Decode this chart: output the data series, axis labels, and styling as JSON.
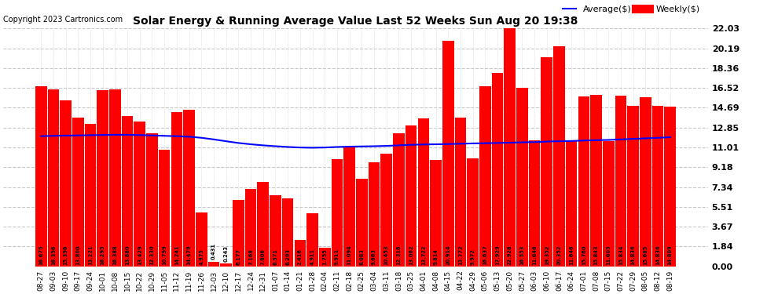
{
  "title": "Solar Energy & Running Average Value Last 52 Weeks Sun Aug 20 19:38",
  "copyright": "Copyright 2023 Cartronics.com",
  "legend_avg": "Average($)",
  "legend_weekly": "Weekly($)",
  "bar_color": "#ff0000",
  "avg_line_color": "#0000ff",
  "background_color": "#ffffff",
  "grid_color": "#c8c8c8",
  "ylabel_right_values": [
    0.0,
    1.84,
    3.67,
    5.51,
    7.34,
    9.18,
    11.01,
    12.85,
    14.69,
    16.52,
    18.36,
    20.19,
    22.03
  ],
  "dates": [
    "08-27",
    "09-03",
    "09-10",
    "09-17",
    "09-24",
    "10-01",
    "10-08",
    "10-15",
    "10-22",
    "10-29",
    "11-05",
    "11-12",
    "11-19",
    "11-26",
    "12-03",
    "12-10",
    "12-17",
    "12-24",
    "12-31",
    "01-07",
    "01-14",
    "01-21",
    "01-28",
    "02-04",
    "02-11",
    "02-18",
    "02-25",
    "03-04",
    "03-11",
    "03-18",
    "03-25",
    "04-01",
    "04-08",
    "04-15",
    "04-22",
    "04-29",
    "05-06",
    "05-13",
    "05-20",
    "05-27",
    "06-03",
    "06-10",
    "06-17",
    "06-24",
    "07-01",
    "07-08",
    "07-15",
    "07-22",
    "07-29",
    "08-05",
    "08-12",
    "08-19"
  ],
  "weekly_values": [
    16.675,
    16.356,
    15.396,
    13.8,
    13.221,
    16.295,
    16.388,
    13.88,
    13.429,
    12.33,
    10.799,
    14.241,
    14.479,
    4.975,
    0.431,
    0.243,
    6.177,
    7.168,
    7.806,
    6.571,
    6.293,
    2.416,
    4.911,
    1.755,
    9.911,
    11.094,
    8.083,
    9.663,
    10.453,
    12.316,
    13.062,
    13.722,
    9.814,
    20.914,
    13.772,
    9.972,
    16.637,
    17.929,
    22.928,
    16.553,
    11.646,
    19.352,
    20.352,
    11.646,
    15.76,
    15.843,
    11.605,
    15.834,
    14.834,
    15.685,
    14.834,
    14.809
  ],
  "avg_values": [
    12.05,
    12.08,
    12.1,
    12.12,
    12.14,
    12.16,
    12.18,
    12.18,
    12.15,
    12.12,
    12.08,
    12.05,
    12.0,
    11.9,
    11.75,
    11.58,
    11.42,
    11.3,
    11.2,
    11.12,
    11.05,
    11.0,
    10.98,
    11.0,
    11.05,
    11.08,
    11.1,
    11.12,
    11.15,
    11.2,
    11.25,
    11.28,
    11.3,
    11.32,
    11.35,
    11.38,
    11.4,
    11.42,
    11.45,
    11.48,
    11.5,
    11.55,
    11.58,
    11.6,
    11.65,
    11.68,
    11.7,
    11.75,
    11.8,
    11.85,
    11.9,
    11.95
  ]
}
